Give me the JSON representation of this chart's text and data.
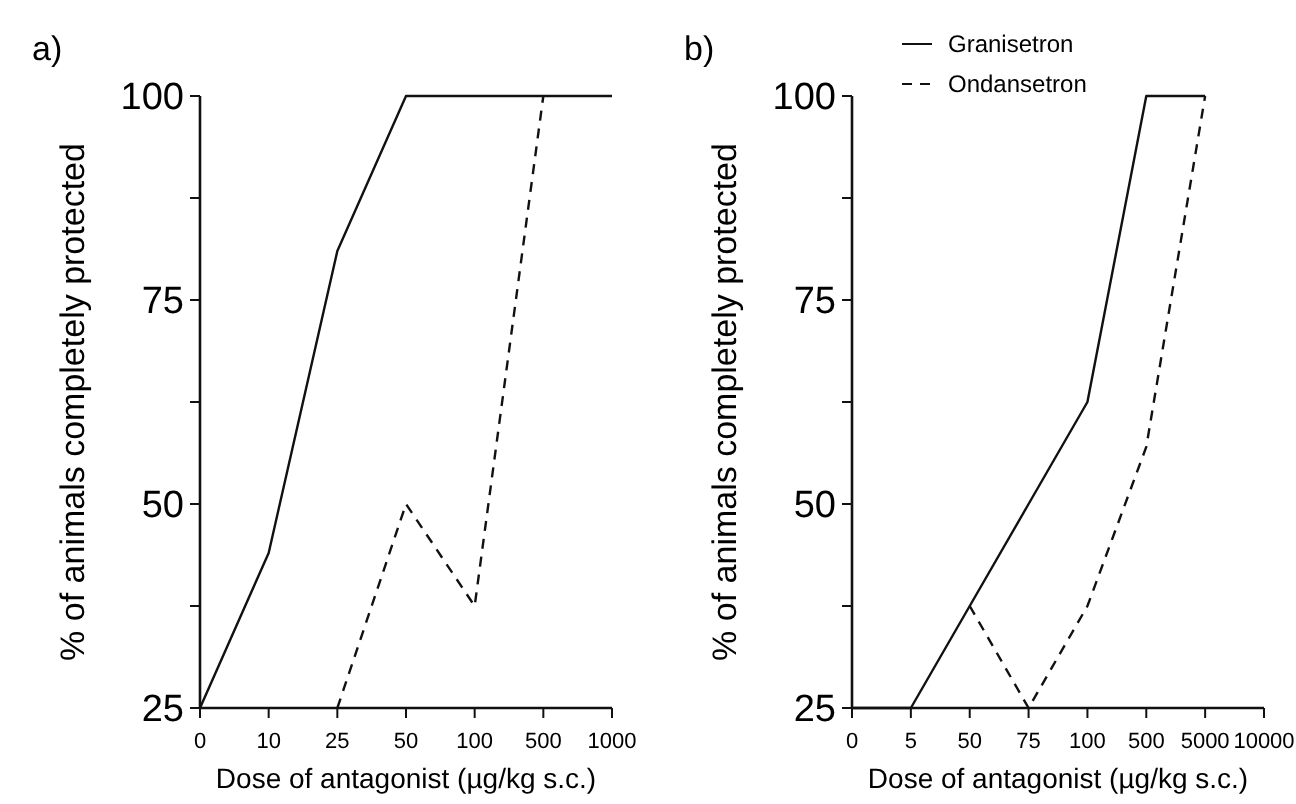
{
  "chart_data": [
    {
      "type": "line",
      "title": "a)",
      "xlabel": "Dose of antagonist (µg/kg s.c.)",
      "ylabel": "% of animals completely protected",
      "categories": [
        "0",
        "10",
        "25",
        "50",
        "100",
        "500",
        "1000"
      ],
      "ylim": [
        25,
        100
      ],
      "yticks": [
        25,
        {
          "value": 37.5,
          "label": null
        },
        50,
        {
          "value": 62.5,
          "label": null
        },
        75,
        {
          "value": 87.5,
          "label": null
        },
        100
      ],
      "grid": false,
      "legend": false,
      "series": [
        {
          "color": "#111111",
          "line_style": "solid",
          "values": [
            25,
            44,
            81,
            100,
            100,
            100,
            100
          ]
        },
        {
          "color": "#111111",
          "line_style": "dashed",
          "values": [
            null,
            null,
            25,
            50,
            37.5,
            100,
            null
          ]
        }
      ]
    },
    {
      "type": "line",
      "title": "b)",
      "xlabel": "Dose of antagonist (µg/kg s.c.)",
      "ylabel": "% of animals completely protected",
      "categories": [
        "0",
        "5",
        "50",
        "75",
        "100",
        "500",
        "5000",
        "10000"
      ],
      "ylim": [
        25,
        100
      ],
      "yticks": [
        25,
        {
          "value": 37.5,
          "label": null
        },
        50,
        {
          "value": 62.5,
          "label": null
        },
        75,
        {
          "value": 87.5,
          "label": null
        },
        100
      ],
      "grid": false,
      "legend": "top left",
      "series": [
        {
          "name": "Granisetron",
          "color": "#111111",
          "line_style": "solid",
          "values": [
            25,
            25,
            37.5,
            50,
            62.5,
            100,
            100,
            null
          ]
        },
        {
          "name": "Ondansetron",
          "color": "#111111",
          "line_style": "dashed",
          "values": [
            null,
            null,
            37.5,
            25,
            37.5,
            57,
            100,
            null
          ]
        }
      ]
    }
  ]
}
